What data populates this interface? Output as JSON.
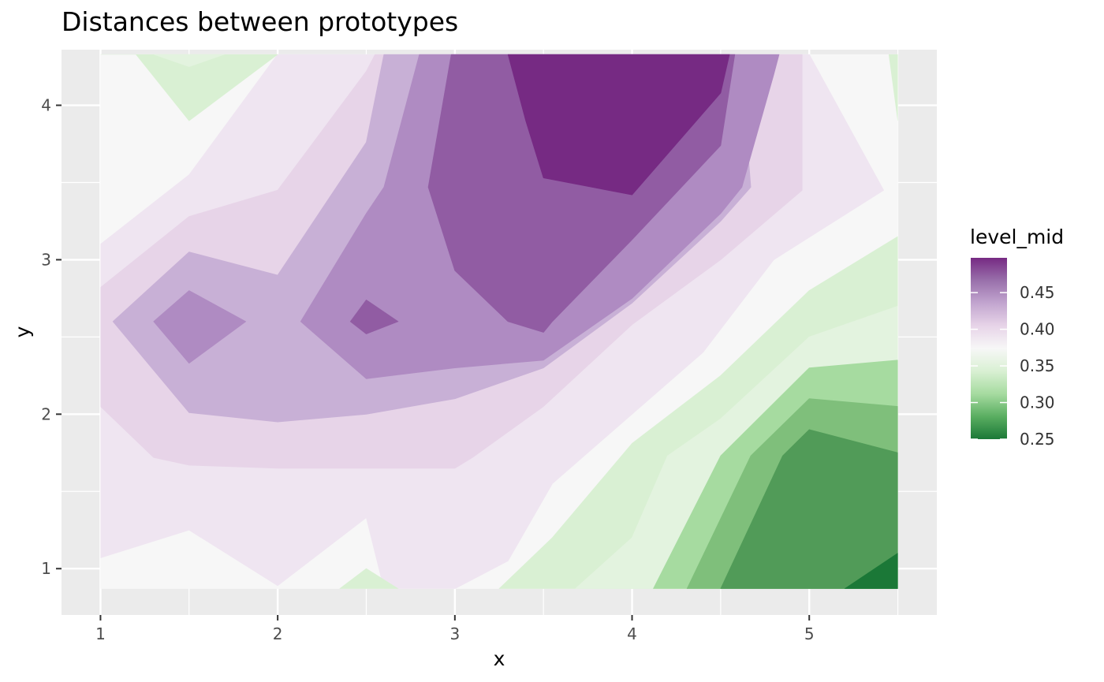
{
  "chart_data": {
    "type": "contour",
    "title": "Distances between prototypes",
    "xlabel": "x",
    "ylabel": "y",
    "xlim": [
      0.78,
      5.72
    ],
    "ylim": [
      0.7,
      4.36
    ],
    "data_extent": {
      "x": [
        1,
        5.5
      ],
      "y": [
        0.87,
        4.33
      ]
    },
    "x_ticks": [
      1,
      2,
      3,
      4,
      5
    ],
    "y_ticks": [
      1,
      2,
      3,
      4
    ],
    "grid": true,
    "legend": {
      "title": "level_mid",
      "position": "right",
      "labels": [
        "0.45",
        "0.40",
        "0.35",
        "0.30",
        "0.25"
      ],
      "label_values": [
        0.45,
        0.4,
        0.35,
        0.3,
        0.25
      ],
      "range": [
        0.25,
        0.4975
      ],
      "colors": [
        "#1b7837",
        "#5aae61",
        "#a6dba0",
        "#d9f0d3",
        "#f7f7f7",
        "#e7d4e8",
        "#c2a5cf",
        "#9970ab",
        "#762a83"
      ]
    },
    "levels": [
      {
        "level": 0.3075,
        "color": "#e3f3df"
      },
      {
        "level": 0.3275,
        "color": "#d9f0d3"
      },
      {
        "level": 0.3475,
        "color": "#f7f7f7"
      },
      {
        "level": 0.3675,
        "color": "#efe5f1"
      },
      {
        "level": 0.3875,
        "color": "#e7d4e8"
      },
      {
        "level": 0.4075,
        "color": "#c8b0d6"
      },
      {
        "level": 0.4275,
        "color": "#af8bc2"
      },
      {
        "level": 0.4475,
        "color": "#915ca3"
      },
      {
        "level": 0.4675,
        "color": "#762a83"
      },
      {
        "level": 0.2875,
        "color": "#a6dba0"
      },
      {
        "level": 0.2675,
        "color": "#7fbf7b"
      },
      {
        "level": 0.2475,
        "color": "#519b58"
      },
      {
        "level": 0.2275,
        "color": "#1b7837"
      }
    ],
    "regions": [
      {
        "level": 0.3475,
        "points": [
          [
            1,
            4.33
          ],
          [
            1.1,
            4.33
          ],
          [
            5.5,
            4.33
          ],
          [
            5.5,
            0.87
          ],
          [
            1,
            0.87
          ]
        ]
      },
      {
        "level": 0.3675,
        "points": [
          [
            1,
            3.1
          ],
          [
            1.5,
            3.55
          ],
          [
            2,
            4.33
          ],
          [
            5.0,
            4.33
          ],
          [
            5.42,
            3.45
          ],
          [
            4.8,
            3.0
          ],
          [
            4.4,
            2.4
          ],
          [
            4.0,
            2.0
          ],
          [
            3.55,
            1.55
          ],
          [
            3.3,
            1.05
          ],
          [
            3.0,
            0.87
          ],
          [
            2.6,
            0.87
          ],
          [
            2.5,
            1.33
          ],
          [
            2.0,
            0.89
          ],
          [
            1.5,
            1.25
          ],
          [
            1.0,
            1.07
          ]
        ]
      },
      {
        "level": 0.3875,
        "points": [
          [
            1,
            2.82
          ],
          [
            1.5,
            3.28
          ],
          [
            2,
            3.45
          ],
          [
            2.5,
            4.22
          ],
          [
            2.55,
            4.33
          ],
          [
            4.96,
            4.33
          ],
          [
            4.96,
            3.45
          ],
          [
            4.5,
            3.0
          ],
          [
            4.0,
            2.58
          ],
          [
            3.5,
            2.05
          ],
          [
            3.1,
            1.72
          ],
          [
            3.0,
            1.65
          ],
          [
            2.0,
            1.65
          ],
          [
            1.5,
            1.67
          ],
          [
            1.3,
            1.72
          ],
          [
            1.0,
            2.05
          ]
        ]
      },
      {
        "level": 0.4075,
        "points": [
          [
            1.07,
            2.6
          ],
          [
            1.5,
            3.05
          ],
          [
            2,
            2.9
          ],
          [
            2.5,
            3.76
          ],
          [
            2.6,
            4.33
          ],
          [
            4.61,
            4.33
          ],
          [
            4.67,
            3.47
          ],
          [
            4.5,
            3.25
          ],
          [
            4.0,
            2.72
          ],
          [
            3.5,
            2.3
          ],
          [
            3.0,
            2.1
          ],
          [
            2.5,
            2.0
          ],
          [
            2.0,
            1.95
          ],
          [
            1.5,
            2.01
          ]
        ]
      },
      {
        "level": 0.4275,
        "points": [
          [
            2.13,
            2.6
          ],
          [
            2.5,
            3.3
          ],
          [
            2.6,
            3.47
          ],
          [
            2.8,
            4.33
          ],
          [
            4.83,
            4.33
          ],
          [
            4.8,
            4.2
          ],
          [
            4.62,
            3.47
          ],
          [
            4.5,
            3.3
          ],
          [
            4.0,
            2.75
          ],
          [
            3.5,
            2.35
          ],
          [
            3.0,
            2.3
          ],
          [
            2.5,
            2.23
          ]
        ]
      },
      {
        "level": 0.4275,
        "points": [
          [
            1.3,
            2.6
          ],
          [
            1.5,
            2.8
          ],
          [
            1.82,
            2.6
          ],
          [
            1.5,
            2.33
          ]
        ]
      },
      {
        "level": 0.4475,
        "points": [
          [
            2.85,
            3.47
          ],
          [
            3.0,
            2.93
          ],
          [
            3.3,
            2.6
          ],
          [
            3.5,
            2.53
          ],
          [
            3.55,
            2.6
          ],
          [
            4.0,
            3.13
          ],
          [
            4.5,
            3.74
          ],
          [
            4.58,
            4.33
          ],
          [
            2.98,
            4.33
          ]
        ]
      },
      {
        "level": 0.4475,
        "points": [
          [
            2.41,
            2.6
          ],
          [
            2.5,
            2.74
          ],
          [
            2.68,
            2.6
          ],
          [
            2.5,
            2.52
          ]
        ]
      },
      {
        "level": 0.4675,
        "points": [
          [
            3.3,
            4.33
          ],
          [
            4.55,
            4.33
          ],
          [
            4.5,
            4.08
          ],
          [
            4.0,
            3.42
          ],
          [
            3.5,
            3.53
          ],
          [
            3.4,
            3.9
          ]
        ]
      },
      {
        "level": 0.3275,
        "points": [
          [
            1,
            4.33
          ],
          [
            1.2,
            4.33
          ],
          [
            1.5,
            3.9
          ],
          [
            2.0,
            4.33
          ],
          [
            1,
            4.33
          ]
        ]
      },
      {
        "level": 0.3075,
        "points": [
          [
            1.3,
            4.33
          ],
          [
            1.5,
            4.25
          ],
          [
            1.7,
            4.33
          ]
        ]
      },
      {
        "level": 0.3275,
        "points": [
          [
            5.5,
            4.33
          ],
          [
            5.45,
            4.33
          ],
          [
            5.5,
            3.9
          ]
        ]
      },
      {
        "level": 0.3275,
        "points": [
          [
            5.5,
            3.15
          ],
          [
            5.0,
            2.8
          ],
          [
            4.5,
            2.25
          ],
          [
            4.0,
            1.81
          ],
          [
            3.55,
            1.2
          ],
          [
            3.25,
            0.87
          ],
          [
            5.5,
            0.87
          ]
        ]
      },
      {
        "level": 0.3275,
        "points": [
          [
            2.35,
            0.87
          ],
          [
            2.5,
            1.0
          ],
          [
            2.68,
            0.87
          ]
        ]
      },
      {
        "level": 0.3075,
        "points": [
          [
            5.5,
            2.7
          ],
          [
            5.0,
            2.5
          ],
          [
            4.5,
            1.97
          ],
          [
            4.2,
            1.73
          ],
          [
            4.0,
            1.2
          ],
          [
            3.68,
            0.87
          ],
          [
            5.5,
            0.87
          ]
        ]
      },
      {
        "level": 0.2875,
        "points": [
          [
            5.5,
            2.35
          ],
          [
            5.0,
            2.3
          ],
          [
            4.5,
            1.73
          ],
          [
            4.12,
            0.87
          ],
          [
            5.5,
            0.87
          ]
        ]
      },
      {
        "level": 0.2675,
        "points": [
          [
            5.5,
            2.05
          ],
          [
            5.0,
            2.1
          ],
          [
            4.67,
            1.73
          ],
          [
            4.31,
            0.87
          ],
          [
            5.5,
            0.87
          ]
        ]
      },
      {
        "level": 0.2475,
        "points": [
          [
            5.5,
            1.75
          ],
          [
            5.0,
            1.9
          ],
          [
            4.85,
            1.73
          ],
          [
            4.5,
            0.87
          ],
          [
            5.5,
            0.87
          ]
        ]
      },
      {
        "level": 0.2275,
        "points": [
          [
            5.5,
            1.1
          ],
          [
            5.2,
            0.87
          ],
          [
            5.5,
            0.87
          ]
        ]
      }
    ]
  }
}
